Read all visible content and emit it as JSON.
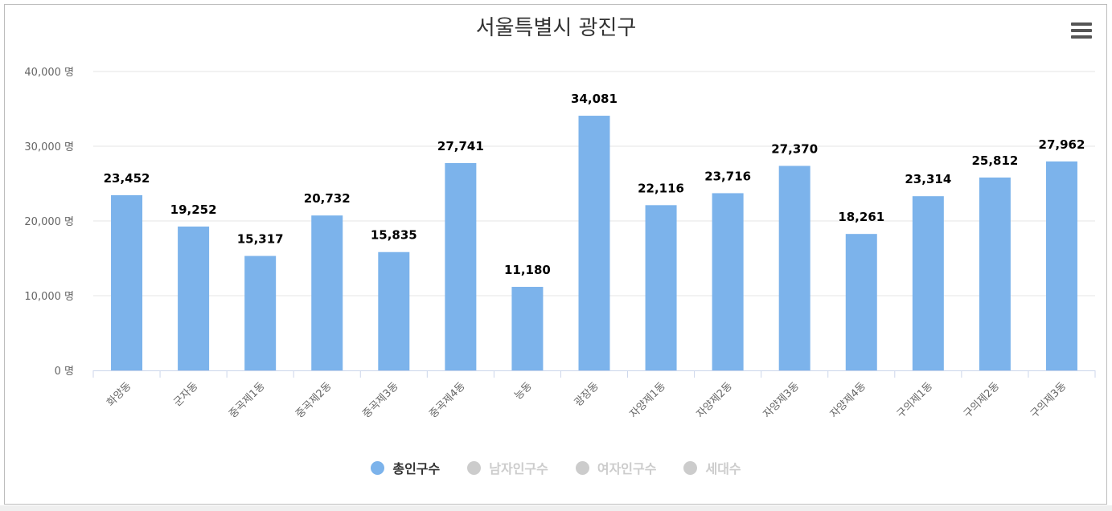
{
  "title": "서울특별시 광진구",
  "colors": {
    "bar": "#7cb3eb",
    "hidden": "#cccccc",
    "grid": "#e6e6e6",
    "axis": "#ccd6eb"
  },
  "chart_data": {
    "type": "bar",
    "title": "서울특별시 광진구",
    "categories": [
      "화양동",
      "군자동",
      "중곡제1동",
      "중곡제2동",
      "중곡제3동",
      "중곡제4동",
      "능동",
      "광장동",
      "자양제1동",
      "자양제2동",
      "자양제3동",
      "자양제4동",
      "구의제1동",
      "구의제2동",
      "구의제3동"
    ],
    "series": [
      {
        "name": "총인구수",
        "values": [
          23452,
          19252,
          15317,
          20732,
          15835,
          27741,
          11180,
          34081,
          22116,
          23716,
          27370,
          18261,
          23314,
          25812,
          27962
        ],
        "visible": true
      }
    ],
    "data_labels": [
      "23,452",
      "19,252",
      "15,317",
      "20,732",
      "15,835",
      "27,741",
      "11,180",
      "34,081",
      "22,116",
      "23,716",
      "27,370",
      "18,261",
      "23,314",
      "25,812",
      "27,962"
    ],
    "ylim": [
      0,
      40000
    ],
    "y_ticks": [
      0,
      10000,
      20000,
      30000,
      40000
    ],
    "y_tick_labels": [
      "0 명",
      "10,000 명",
      "20,000 명",
      "30,000 명",
      "40,000 명"
    ],
    "grid": true,
    "legend_position": "bottom"
  },
  "legend": [
    {
      "label": "총인구수",
      "active": true
    },
    {
      "label": "남자인구수",
      "active": false
    },
    {
      "label": "여자인구수",
      "active": false
    },
    {
      "label": "세대수",
      "active": false
    }
  ]
}
